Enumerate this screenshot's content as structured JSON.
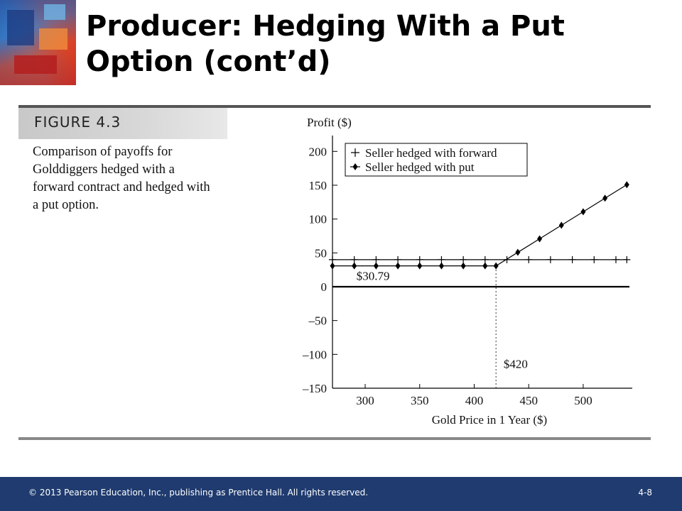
{
  "slide": {
    "title": "Producer: Hedging With a Put Option (cont’d)",
    "figure_label": "FIGURE 4.3",
    "caption": "Comparison of payoffs for Golddiggers hedged with a forward contract and hedged with a put option.",
    "footer_copyright": "© 2013 Pearson Education, Inc., publishing as Prentice Hall.  All rights reserved.",
    "footer_page": "4-8"
  },
  "colors": {
    "footer_bg": "#1f3b6f",
    "series_line": "#000000"
  },
  "chart_data": {
    "type": "line",
    "title": "",
    "xlabel": "Gold Price in 1 Year ($)",
    "ylabel": "Profit ($)",
    "xlim": [
      270,
      545
    ],
    "ylim": [
      -150,
      215
    ],
    "xticks": [
      300,
      350,
      400,
      450,
      500
    ],
    "yticks": [
      200,
      150,
      100,
      50,
      0,
      -50,
      -100,
      -150
    ],
    "ytick_labels": [
      "200",
      "150",
      "100",
      "50",
      "0",
      "–50",
      "–100",
      "–150"
    ],
    "legend_position": "top-left",
    "series": [
      {
        "name": "Seller hedged with forward",
        "marker": "plus",
        "x": [
          270,
          290,
          310,
          330,
          350,
          370,
          390,
          410,
          430,
          450,
          470,
          490,
          510,
          530,
          540
        ],
        "y": [
          40,
          40,
          40,
          40,
          40,
          40,
          40,
          40,
          40,
          40,
          40,
          40,
          40,
          40,
          40
        ]
      },
      {
        "name": "Seller hedged with put",
        "marker": "diamond",
        "x": [
          270,
          290,
          310,
          330,
          350,
          370,
          390,
          410,
          420,
          440,
          460,
          480,
          500,
          520,
          540
        ],
        "y": [
          30.79,
          30.79,
          30.79,
          30.79,
          30.79,
          30.79,
          30.79,
          30.79,
          30.79,
          50.79,
          70.79,
          90.79,
          110.79,
          130.79,
          150.79
        ]
      }
    ],
    "zero_line": 0,
    "annotations": [
      {
        "text": "$30.79",
        "x": 290,
        "y": 12
      },
      {
        "text": "$420",
        "x": 425,
        "y": -118
      }
    ],
    "reference_line": {
      "x": 420,
      "from_y": -150,
      "to_y": 30.79,
      "style": "dotted"
    }
  }
}
